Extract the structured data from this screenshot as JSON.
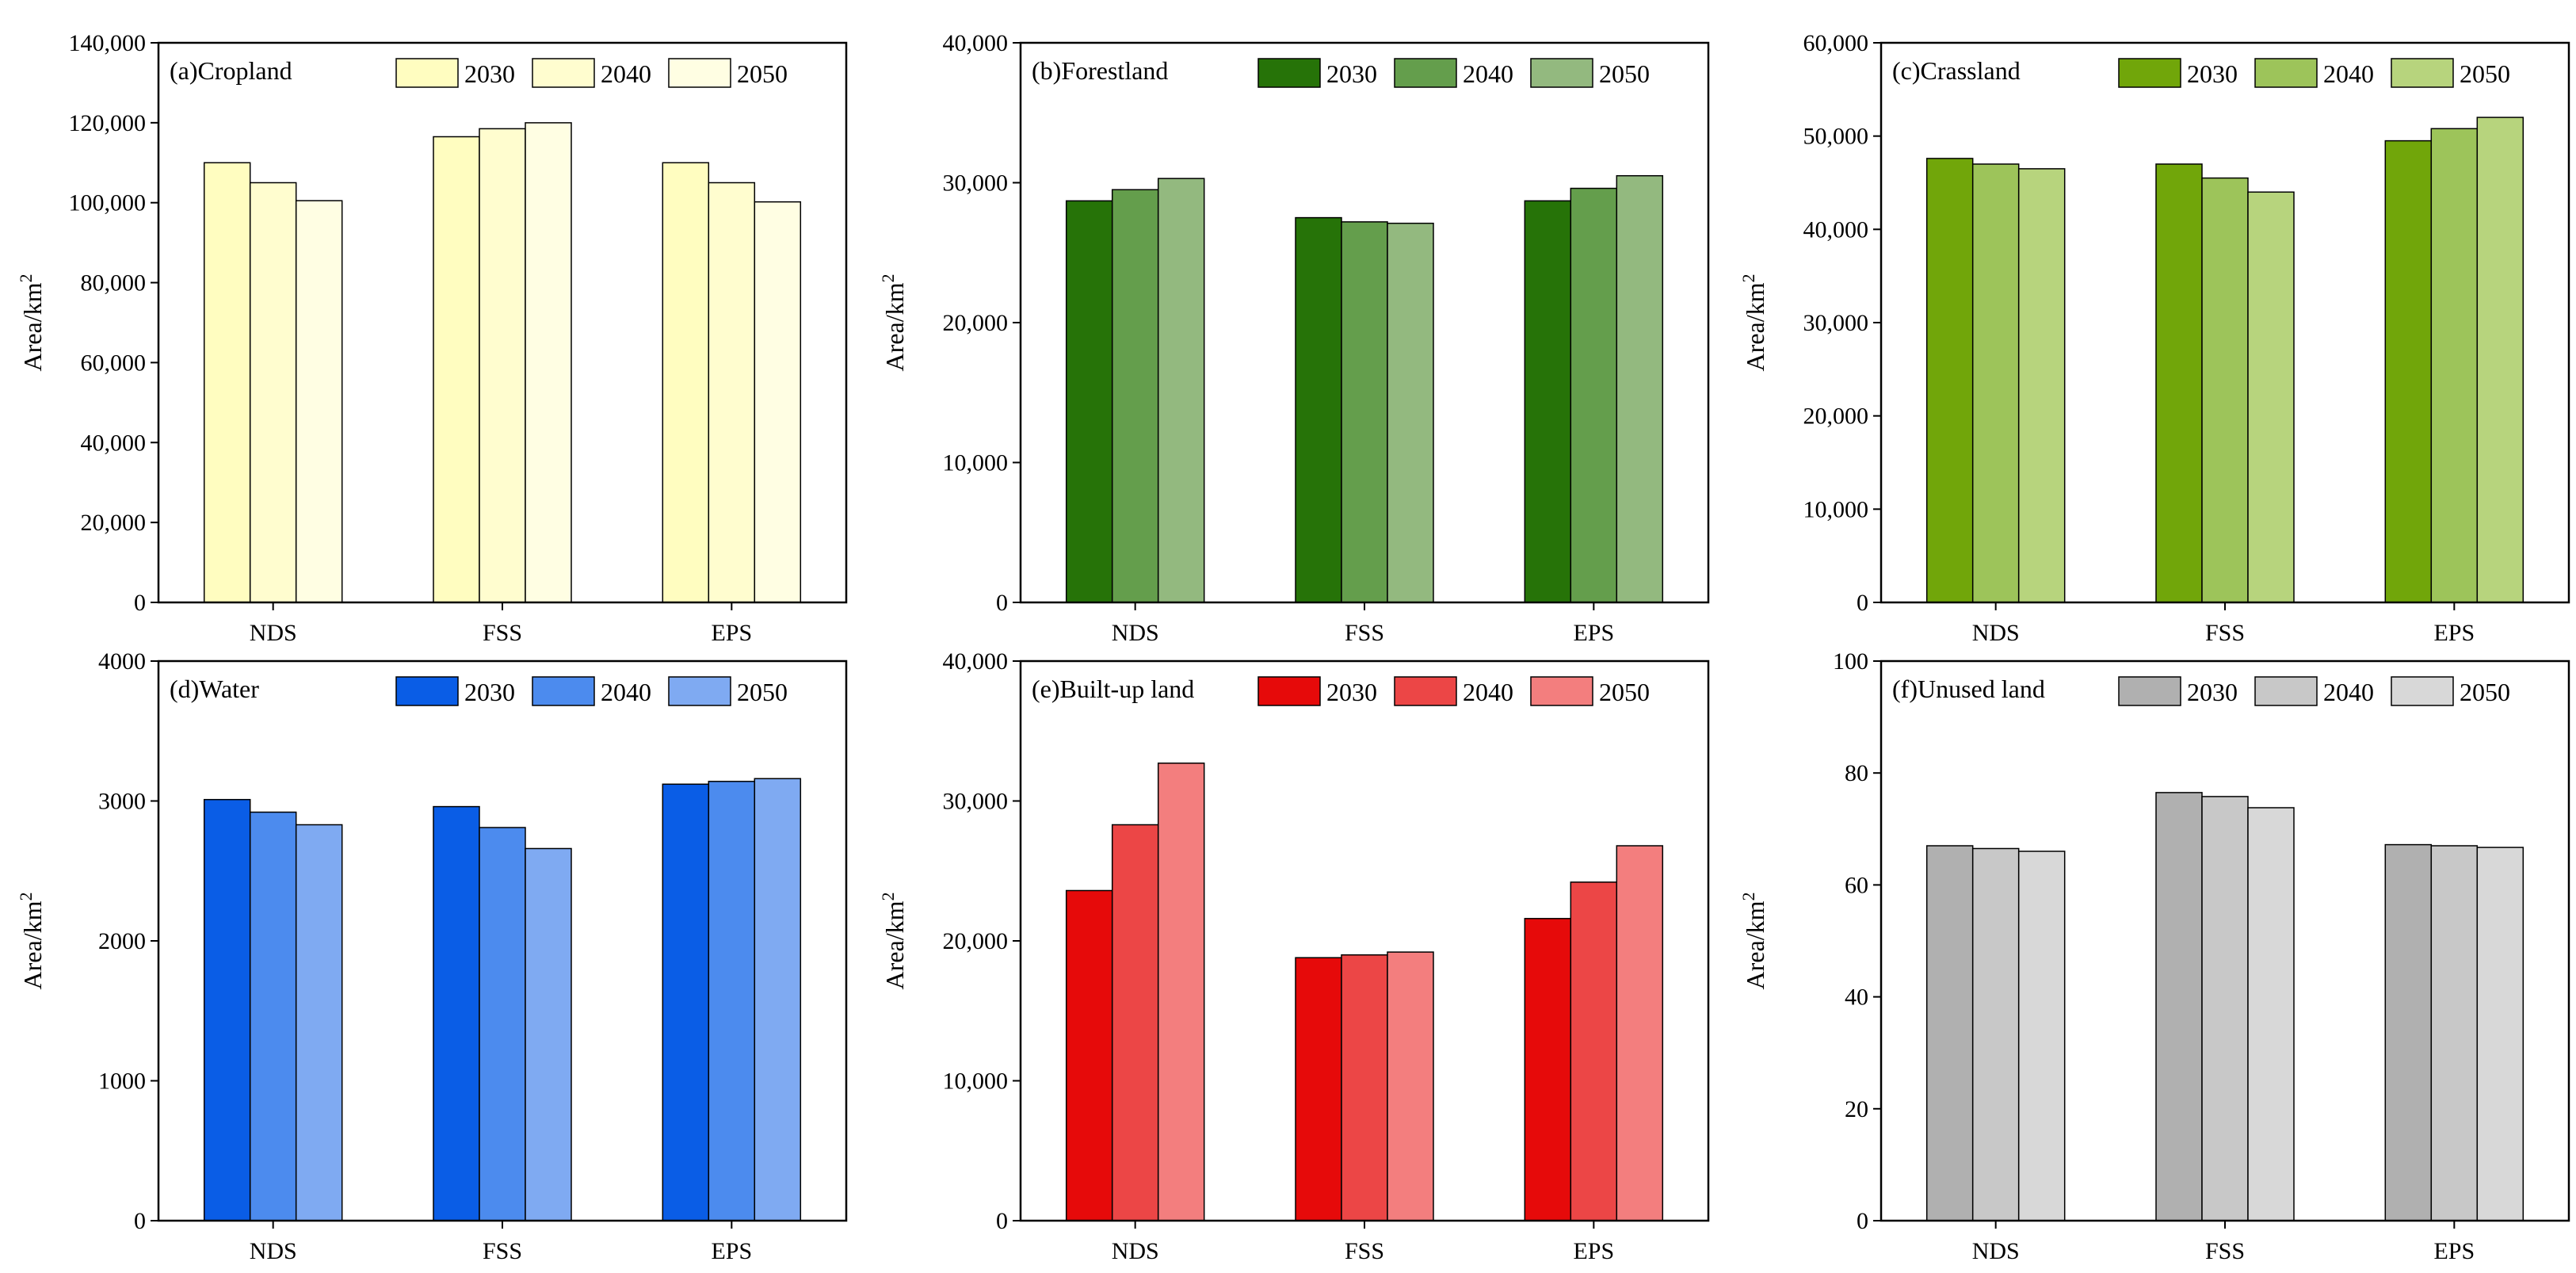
{
  "chart_data": [
    {
      "panel_label": "(a)Cropland",
      "type": "bar",
      "categories": [
        "NDS",
        "FSS",
        "EPS"
      ],
      "series": [
        {
          "name": "2030",
          "color": "#FFFDC0",
          "values": [
            110000,
            116500,
            110000
          ]
        },
        {
          "name": "2040",
          "color": "#FFFDCF",
          "values": [
            105000,
            118500,
            105000
          ]
        },
        {
          "name": "2050",
          "color": "#FFFEE3",
          "values": [
            100500,
            120000,
            100200
          ]
        }
      ],
      "ylabel": "Area/km",
      "ylabel_sup": "2",
      "ylim": [
        0,
        140000
      ],
      "yticks": [
        0,
        20000,
        40000,
        60000,
        80000,
        100000,
        120000,
        140000
      ],
      "ytick_labels": [
        "0",
        "20,000",
        "40,000",
        "60,000",
        "80,000",
        "100,000",
        "120,000",
        "140,000"
      ],
      "legend_position": "top-right",
      "grid": false
    },
    {
      "panel_label": "(b)Forestland",
      "type": "bar",
      "categories": [
        "NDS",
        "FSS",
        "EPS"
      ],
      "series": [
        {
          "name": "2030",
          "color": "#267308",
          "values": [
            28700,
            27500,
            28700
          ]
        },
        {
          "name": "2040",
          "color": "#649E4C",
          "values": [
            29500,
            27200,
            29600
          ]
        },
        {
          "name": "2050",
          "color": "#93B97F",
          "values": [
            30300,
            27100,
            30500
          ]
        }
      ],
      "ylabel": "Area/km",
      "ylabel_sup": "2",
      "ylim": [
        0,
        40000
      ],
      "yticks": [
        0,
        10000,
        20000,
        30000,
        40000
      ],
      "ytick_labels": [
        "0",
        "10,000",
        "20,000",
        "30,000",
        "40,000"
      ],
      "legend_position": "top-right",
      "grid": false
    },
    {
      "panel_label": "(c)Crassland",
      "type": "bar",
      "categories": [
        "NDS",
        "FSS",
        "EPS"
      ],
      "series": [
        {
          "name": "2030",
          "color": "#71A60A",
          "values": [
            47600,
            47000,
            49500
          ]
        },
        {
          "name": "2040",
          "color": "#9DC45A",
          "values": [
            47000,
            45500,
            50800
          ]
        },
        {
          "name": "2050",
          "color": "#B7D47D",
          "values": [
            46500,
            44000,
            52000
          ]
        }
      ],
      "ylabel": "Area/km",
      "ylabel_sup": "2",
      "ylim": [
        0,
        60000
      ],
      "yticks": [
        0,
        10000,
        20000,
        30000,
        40000,
        50000,
        60000
      ],
      "ytick_labels": [
        "0",
        "10,000",
        "20,000",
        "30,000",
        "40,000",
        "50,000",
        "60,000"
      ],
      "legend_position": "top-right",
      "grid": false
    },
    {
      "panel_label": "(d)Water",
      "type": "bar",
      "categories": [
        "NDS",
        "FSS",
        "EPS"
      ],
      "series": [
        {
          "name": "2030",
          "color": "#0A5DE6",
          "values": [
            3010,
            2960,
            3120
          ]
        },
        {
          "name": "2040",
          "color": "#4C8BEE",
          "values": [
            2920,
            2810,
            3140
          ]
        },
        {
          "name": "2050",
          "color": "#7FAAF2",
          "values": [
            2830,
            2660,
            3160
          ]
        }
      ],
      "ylabel": "Area/km",
      "ylabel_sup": "2",
      "ylim": [
        0,
        4000
      ],
      "yticks": [
        0,
        1000,
        2000,
        3000,
        4000
      ],
      "ytick_labels": [
        "0",
        "1000",
        "2000",
        "3000",
        "4000"
      ],
      "legend_position": "top-right",
      "grid": false
    },
    {
      "panel_label": "(e)Built-up land",
      "type": "bar",
      "categories": [
        "NDS",
        "FSS",
        "EPS"
      ],
      "series": [
        {
          "name": "2030",
          "color": "#E60A0A",
          "values": [
            23600,
            18800,
            21600
          ]
        },
        {
          "name": "2040",
          "color": "#EC4646",
          "values": [
            28300,
            19000,
            24200
          ]
        },
        {
          "name": "2050",
          "color": "#F37E7E",
          "values": [
            32700,
            19200,
            26800
          ]
        }
      ],
      "ylabel": "Area/km",
      "ylabel_sup": "2",
      "ylim": [
        0,
        40000
      ],
      "yticks": [
        0,
        10000,
        20000,
        30000,
        40000
      ],
      "ytick_labels": [
        "0",
        "10,000",
        "20,000",
        "30,000",
        "40,000"
      ],
      "legend_position": "top-right",
      "grid": false
    },
    {
      "panel_label": "(f)Unused land",
      "type": "bar",
      "categories": [
        "NDS",
        "FSS",
        "EPS"
      ],
      "series": [
        {
          "name": "2030",
          "color": "#B0B0B0",
          "values": [
            67.0,
            76.5,
            67.2
          ]
        },
        {
          "name": "2040",
          "color": "#C8C8C8",
          "values": [
            66.5,
            75.8,
            67.0
          ]
        },
        {
          "name": "2050",
          "color": "#D8D8D8",
          "values": [
            66.0,
            73.8,
            66.7
          ]
        }
      ],
      "ylabel": "Area/km",
      "ylabel_sup": "2",
      "ylim": [
        0,
        100
      ],
      "yticks": [
        0,
        20,
        40,
        60,
        80,
        100
      ],
      "ytick_labels": [
        "0",
        "20",
        "40",
        "60",
        "80",
        "100"
      ],
      "legend_position": "top-right",
      "grid": false
    }
  ]
}
